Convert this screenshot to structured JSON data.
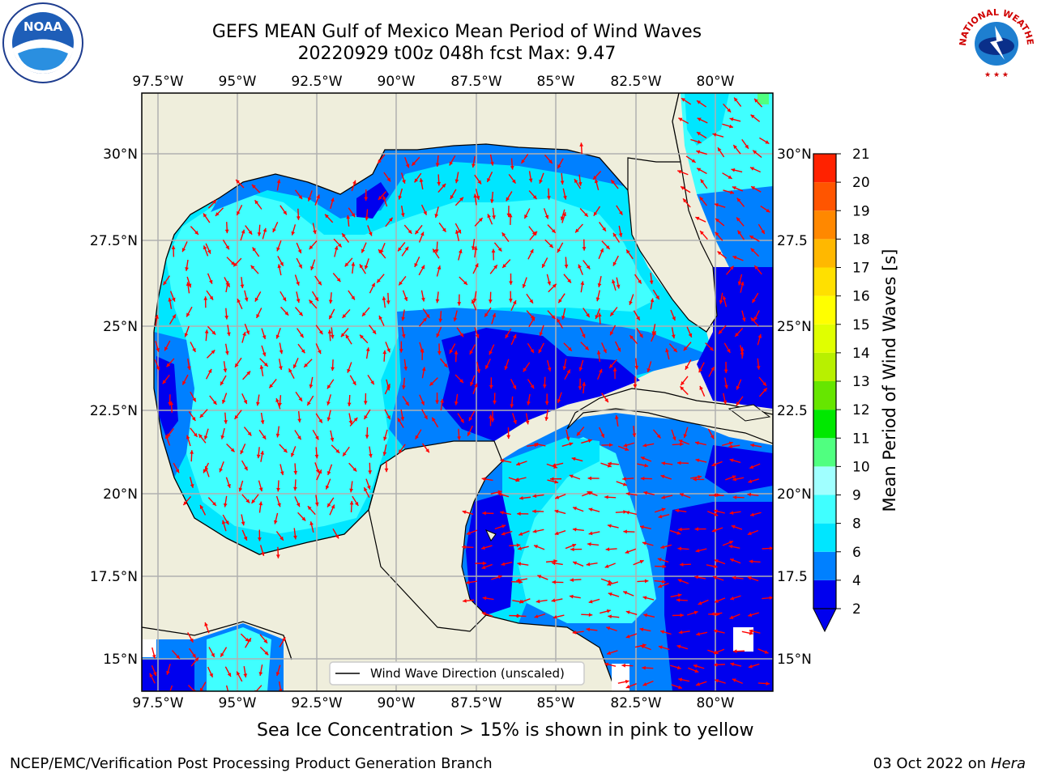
{
  "title_line1": "GEFS MEAN Gulf of Mexico Mean Period of Wind Waves",
  "title_line2": "20220929 t00z 048h fcst   Max: 9.47",
  "lon_labels": [
    "97.5°W",
    "95°W",
    "92.5°W",
    "90°W",
    "87.5°W",
    "85°W",
    "82.5°W",
    "80°W"
  ],
  "lat_labels_left": [
    "30°N",
    "27.5°N",
    "25°N",
    "22.5°N",
    "20°N",
    "17.5°N",
    "15°N"
  ],
  "lat_labels_right": [
    "30°N",
    "27.5",
    "25°N",
    "22.5",
    "20°N",
    "17.5",
    "15°N"
  ],
  "legend_label": "Wind Wave Direction (unscaled)",
  "colorbar": {
    "label": "Mean Period of Wind Waves [s]",
    "ticks": [
      "2",
      "4",
      "6",
      "8",
      "9",
      "10",
      "11",
      "12",
      "13",
      "14",
      "15",
      "16",
      "17",
      "18",
      "19",
      "20",
      "21"
    ],
    "colors": [
      "#0000ee",
      "#0080ff",
      "#00e6ff",
      "#40ffff",
      "#a0ffff",
      "#50ff80",
      "#00e800",
      "#66e600",
      "#b8f000",
      "#e0ff00",
      "#ffff00",
      "#ffe000",
      "#ffb800",
      "#ff8800",
      "#ff5500",
      "#ff2200",
      "#ff0000"
    ]
  },
  "colors": {
    "land": "#efeedc",
    "arrow": "#ff0000",
    "grid": "#b0b0b0"
  },
  "logos": {
    "noaa_text": "NOAA",
    "nws_text": "NATIONAL WEATHER SERVICE"
  },
  "note": "Sea Ice Concentration > 15% is shown in pink to yellow",
  "credit": "NCEP/EMC/Verification Post Processing Product Generation Branch",
  "date": "03 Oct 2022 on",
  "machine": "Hera"
}
